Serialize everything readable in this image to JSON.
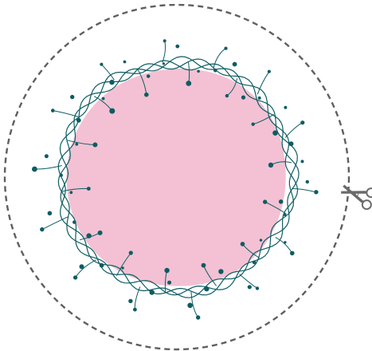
{
  "colors": {
    "background": "#ffffff",
    "cut_line": "#5f5f5f",
    "fill": "#f3c1d3",
    "vine": "#0d5c63",
    "dot": "#0d5c63",
    "scissors": "#6a6a6a"
  },
  "icons": {
    "scissors": "scissors-icon"
  },
  "wreath": {
    "vine_strands": 3,
    "dots_per_ring": 40,
    "sprigs": 28
  }
}
